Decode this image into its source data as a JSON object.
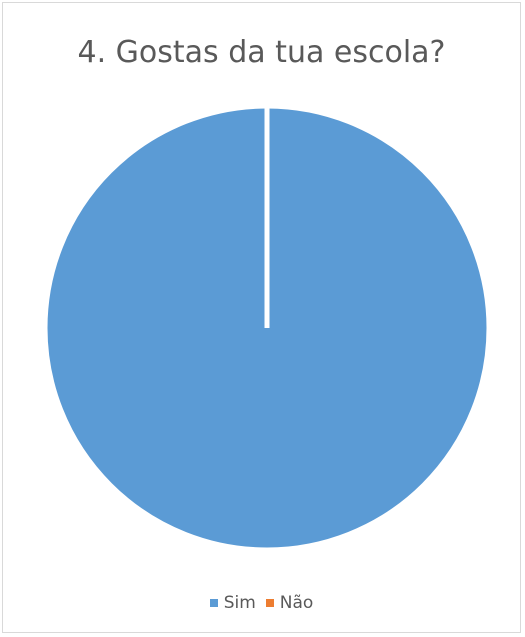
{
  "chart_data": {
    "type": "pie",
    "title": "4. Gostas da tua escola?",
    "categories": [
      "Sim",
      "Não"
    ],
    "values": [
      100,
      0
    ],
    "colors": [
      "#5b9bd5",
      "#ed7d31"
    ],
    "legend_position": "bottom",
    "border_color": "#ffffff"
  }
}
